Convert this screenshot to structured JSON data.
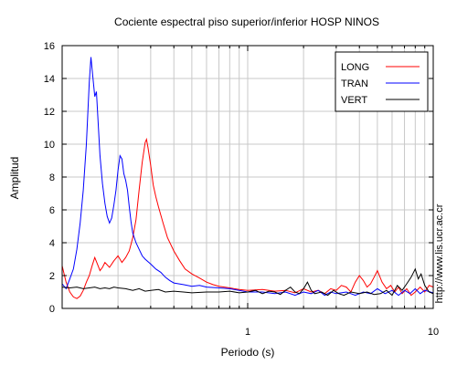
{
  "chart_data": {
    "type": "line",
    "title": "Cociente espectral piso superior/inferior  HOSP NINOS",
    "xlabel": "Periodo (s)",
    "ylabel": "Amplitud",
    "xscale": "log",
    "xlim": [
      0.1,
      10
    ],
    "ylim": [
      0,
      16
    ],
    "xticks": [
      {
        "value": 1,
        "label": "1"
      },
      {
        "value": 10,
        "label": "10"
      }
    ],
    "yticks": [
      {
        "value": 0,
        "label": "0"
      },
      {
        "value": 2,
        "label": "2"
      },
      {
        "value": 4,
        "label": "4"
      },
      {
        "value": 6,
        "label": "6"
      },
      {
        "value": 8,
        "label": "8"
      },
      {
        "value": 10,
        "label": "10"
      },
      {
        "value": 12,
        "label": "12"
      },
      {
        "value": 14,
        "label": "14"
      },
      {
        "value": 16,
        "label": "16"
      }
    ],
    "grid": true,
    "legend_position": "top-right",
    "series": [
      {
        "name": "LONG",
        "color": "#ff0000",
        "points": [
          [
            0.1,
            2.6
          ],
          [
            0.105,
            1.6
          ],
          [
            0.11,
            1.0
          ],
          [
            0.115,
            0.7
          ],
          [
            0.12,
            0.6
          ],
          [
            0.125,
            0.75
          ],
          [
            0.13,
            1.1
          ],
          [
            0.135,
            1.6
          ],
          [
            0.14,
            2.0
          ],
          [
            0.145,
            2.6
          ],
          [
            0.15,
            3.1
          ],
          [
            0.155,
            2.7
          ],
          [
            0.16,
            2.3
          ],
          [
            0.165,
            2.5
          ],
          [
            0.17,
            2.8
          ],
          [
            0.18,
            2.5
          ],
          [
            0.19,
            2.9
          ],
          [
            0.2,
            3.2
          ],
          [
            0.21,
            2.8
          ],
          [
            0.22,
            3.1
          ],
          [
            0.23,
            3.5
          ],
          [
            0.24,
            4.3
          ],
          [
            0.25,
            5.4
          ],
          [
            0.26,
            7.2
          ],
          [
            0.27,
            8.9
          ],
          [
            0.28,
            10.1
          ],
          [
            0.285,
            10.3
          ],
          [
            0.29,
            9.8
          ],
          [
            0.3,
            8.7
          ],
          [
            0.31,
            7.5
          ],
          [
            0.32,
            6.8
          ],
          [
            0.33,
            6.2
          ],
          [
            0.35,
            5.2
          ],
          [
            0.37,
            4.3
          ],
          [
            0.4,
            3.5
          ],
          [
            0.43,
            2.9
          ],
          [
            0.46,
            2.4
          ],
          [
            0.5,
            2.1
          ],
          [
            0.55,
            1.85
          ],
          [
            0.6,
            1.6
          ],
          [
            0.65,
            1.45
          ],
          [
            0.7,
            1.35
          ],
          [
            0.8,
            1.25
          ],
          [
            0.9,
            1.15
          ],
          [
            1.0,
            1.1
          ],
          [
            1.2,
            1.15
          ],
          [
            1.4,
            1.05
          ],
          [
            1.6,
            1.1
          ],
          [
            1.8,
            0.95
          ],
          [
            2.0,
            1.2
          ],
          [
            2.2,
            1.0
          ],
          [
            2.4,
            1.1
          ],
          [
            2.6,
            0.9
          ],
          [
            2.8,
            1.2
          ],
          [
            3.0,
            1.1
          ],
          [
            3.2,
            1.4
          ],
          [
            3.4,
            1.3
          ],
          [
            3.6,
            1.0
          ],
          [
            3.8,
            1.6
          ],
          [
            4.0,
            2.0
          ],
          [
            4.2,
            1.7
          ],
          [
            4.4,
            1.3
          ],
          [
            4.6,
            1.5
          ],
          [
            4.8,
            1.9
          ],
          [
            5.0,
            2.3
          ],
          [
            5.3,
            1.6
          ],
          [
            5.6,
            1.2
          ],
          [
            5.9,
            1.4
          ],
          [
            6.2,
            1.0
          ],
          [
            6.5,
            1.3
          ],
          [
            6.8,
            0.9
          ],
          [
            7.2,
            1.2
          ],
          [
            7.6,
            0.8
          ],
          [
            8.0,
            1.0
          ],
          [
            8.5,
            1.3
          ],
          [
            9.0,
            1.0
          ],
          [
            9.5,
            1.4
          ],
          [
            10.0,
            1.3
          ]
        ]
      },
      {
        "name": "TRAN",
        "color": "#0000ff",
        "points": [
          [
            0.1,
            1.5
          ],
          [
            0.105,
            1.2
          ],
          [
            0.11,
            1.8
          ],
          [
            0.115,
            2.4
          ],
          [
            0.12,
            3.6
          ],
          [
            0.125,
            5.2
          ],
          [
            0.13,
            7.2
          ],
          [
            0.135,
            10.0
          ],
          [
            0.14,
            13.8
          ],
          [
            0.143,
            15.3
          ],
          [
            0.146,
            14.2
          ],
          [
            0.15,
            12.9
          ],
          [
            0.153,
            13.2
          ],
          [
            0.156,
            11.5
          ],
          [
            0.16,
            9.3
          ],
          [
            0.165,
            7.6
          ],
          [
            0.17,
            6.4
          ],
          [
            0.175,
            5.6
          ],
          [
            0.18,
            5.2
          ],
          [
            0.185,
            5.5
          ],
          [
            0.19,
            6.3
          ],
          [
            0.195,
            7.2
          ],
          [
            0.2,
            8.4
          ],
          [
            0.205,
            9.3
          ],
          [
            0.21,
            9.1
          ],
          [
            0.215,
            8.2
          ],
          [
            0.22,
            7.8
          ],
          [
            0.225,
            7.2
          ],
          [
            0.23,
            6.2
          ],
          [
            0.235,
            5.3
          ],
          [
            0.24,
            4.6
          ],
          [
            0.25,
            4.0
          ],
          [
            0.26,
            3.6
          ],
          [
            0.27,
            3.2
          ],
          [
            0.28,
            3.0
          ],
          [
            0.3,
            2.7
          ],
          [
            0.32,
            2.4
          ],
          [
            0.34,
            2.2
          ],
          [
            0.36,
            1.9
          ],
          [
            0.38,
            1.7
          ],
          [
            0.4,
            1.55
          ],
          [
            0.45,
            1.45
          ],
          [
            0.5,
            1.35
          ],
          [
            0.55,
            1.4
          ],
          [
            0.6,
            1.3
          ],
          [
            0.7,
            1.25
          ],
          [
            0.8,
            1.2
          ],
          [
            0.9,
            1.1
          ],
          [
            1.0,
            1.0
          ],
          [
            1.2,
            1.0
          ],
          [
            1.4,
            0.9
          ],
          [
            1.6,
            1.0
          ],
          [
            1.8,
            0.8
          ],
          [
            2.0,
            1.0
          ],
          [
            2.2,
            0.9
          ],
          [
            2.4,
            1.1
          ],
          [
            2.6,
            0.8
          ],
          [
            2.8,
            1.0
          ],
          [
            3.0,
            0.9
          ],
          [
            3.4,
            1.0
          ],
          [
            3.8,
            0.8
          ],
          [
            4.2,
            1.0
          ],
          [
            4.6,
            0.9
          ],
          [
            5.0,
            1.2
          ],
          [
            5.5,
            0.9
          ],
          [
            6.0,
            1.1
          ],
          [
            6.5,
            0.8
          ],
          [
            7.0,
            1.1
          ],
          [
            7.5,
            0.9
          ],
          [
            8.0,
            1.2
          ],
          [
            8.5,
            0.9
          ],
          [
            9.0,
            1.1
          ],
          [
            10.0,
            0.95
          ]
        ]
      },
      {
        "name": "VERT",
        "color": "#000000",
        "points": [
          [
            0.1,
            1.3
          ],
          [
            0.11,
            1.25
          ],
          [
            0.12,
            1.3
          ],
          [
            0.13,
            1.2
          ],
          [
            0.14,
            1.25
          ],
          [
            0.15,
            1.3
          ],
          [
            0.16,
            1.2
          ],
          [
            0.17,
            1.25
          ],
          [
            0.18,
            1.2
          ],
          [
            0.19,
            1.3
          ],
          [
            0.2,
            1.25
          ],
          [
            0.22,
            1.2
          ],
          [
            0.24,
            1.1
          ],
          [
            0.26,
            1.2
          ],
          [
            0.28,
            1.05
          ],
          [
            0.3,
            1.1
          ],
          [
            0.33,
            1.15
          ],
          [
            0.36,
            1.0
          ],
          [
            0.4,
            1.05
          ],
          [
            0.45,
            1.0
          ],
          [
            0.5,
            0.95
          ],
          [
            0.6,
            1.0
          ],
          [
            0.7,
            1.0
          ],
          [
            0.8,
            1.05
          ],
          [
            0.9,
            0.95
          ],
          [
            1.0,
            1.0
          ],
          [
            1.1,
            1.1
          ],
          [
            1.2,
            0.9
          ],
          [
            1.3,
            1.05
          ],
          [
            1.4,
            1.0
          ],
          [
            1.5,
            0.85
          ],
          [
            1.6,
            1.1
          ],
          [
            1.7,
            1.3
          ],
          [
            1.8,
            1.0
          ],
          [
            1.9,
            0.9
          ],
          [
            2.0,
            1.2
          ],
          [
            2.1,
            1.6
          ],
          [
            2.2,
            1.1
          ],
          [
            2.3,
            0.9
          ],
          [
            2.5,
            1.0
          ],
          [
            2.7,
            0.8
          ],
          [
            2.9,
            1.1
          ],
          [
            3.1,
            0.9
          ],
          [
            3.3,
            0.8
          ],
          [
            3.6,
            1.0
          ],
          [
            4.0,
            0.9
          ],
          [
            4.4,
            1.0
          ],
          [
            4.8,
            0.85
          ],
          [
            5.2,
            0.9
          ],
          [
            5.6,
            1.1
          ],
          [
            6.0,
            0.8
          ],
          [
            6.4,
            1.4
          ],
          [
            6.8,
            1.1
          ],
          [
            7.2,
            1.5
          ],
          [
            7.6,
            1.9
          ],
          [
            8.0,
            2.4
          ],
          [
            8.3,
            1.8
          ],
          [
            8.6,
            2.1
          ],
          [
            9.0,
            1.4
          ],
          [
            9.5,
            1.0
          ],
          [
            10.0,
            0.9
          ]
        ]
      }
    ]
  },
  "watermark": "http://www.lis.ucr.ac.cr"
}
